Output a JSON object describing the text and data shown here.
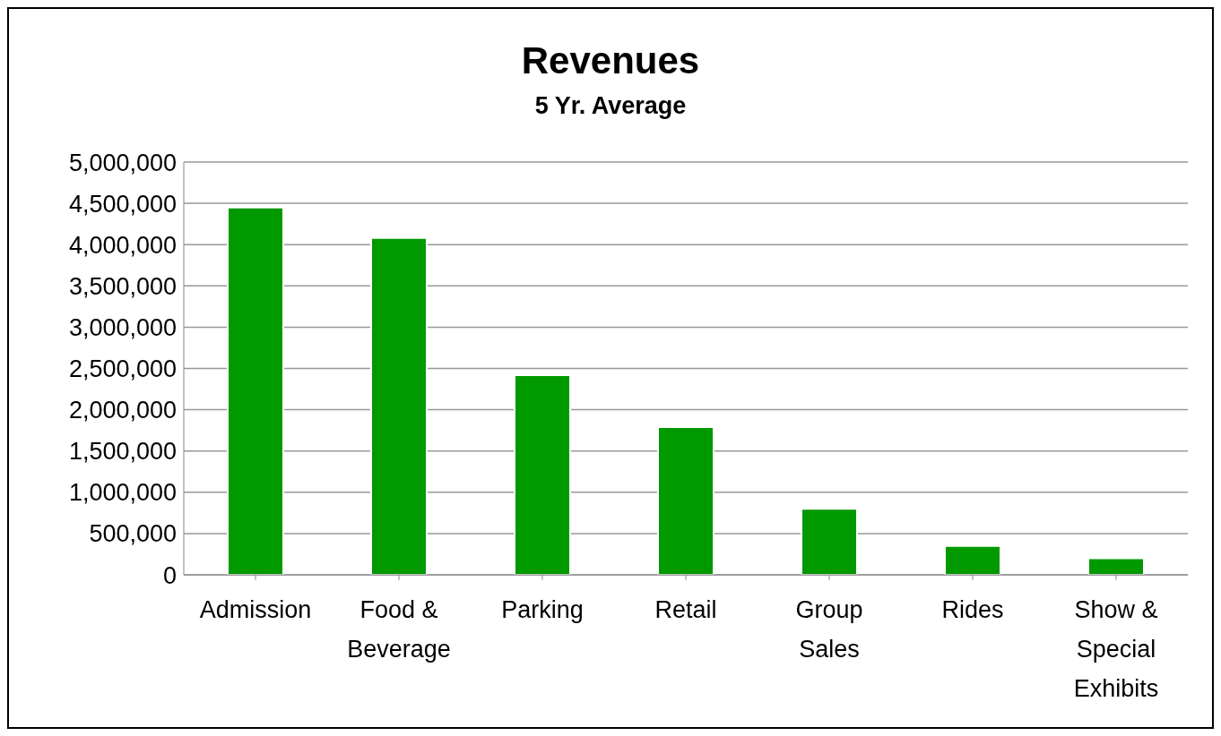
{
  "chart_data": {
    "type": "bar",
    "title": "Revenues",
    "subtitle": "5 Yr. Average",
    "categories": [
      "Admission",
      "Food & Beverage",
      "Parking",
      "Retail",
      "Group Sales",
      "Rides",
      "Show & Special Exhibits"
    ],
    "values": [
      4450000,
      4080000,
      2420000,
      1790000,
      800000,
      350000,
      200000
    ],
    "color": "#009900",
    "ylim": [
      0,
      5000000
    ],
    "yticks": [
      0,
      {
        "value": 500000,
        "label": "500,000"
      },
      {
        "value": 1000000,
        "label": "1,000,000"
      },
      {
        "value": 1500000,
        "label": "1,500,000"
      },
      {
        "value": 2000000,
        "label": "2,000,000"
      },
      {
        "value": 2500000,
        "label": "2,500,000"
      },
      {
        "value": 3000000,
        "label": "3,000,000"
      },
      {
        "value": 3500000,
        "label": "3,500,000"
      },
      {
        "value": 4000000,
        "label": "4,000,000"
      },
      {
        "value": 4500000,
        "label": "4,500,000"
      },
      {
        "value": 5000000,
        "label": "5,000,000"
      }
    ],
    "grid": "y",
    "legend": false
  }
}
